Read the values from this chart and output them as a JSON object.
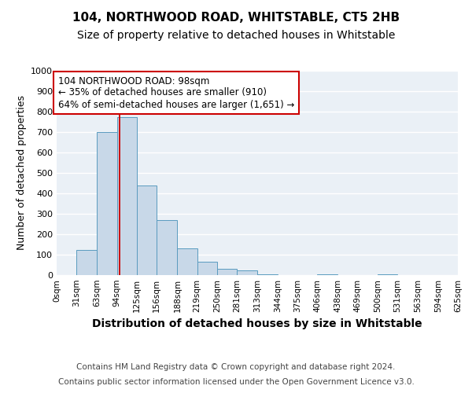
{
  "title1": "104, NORTHWOOD ROAD, WHITSTABLE, CT5 2HB",
  "title2": "Size of property relative to detached houses in Whitstable",
  "xlabel": "Distribution of detached houses by size in Whitstable",
  "ylabel": "Number of detached properties",
  "bin_edges": [
    0,
    31,
    63,
    94,
    125,
    156,
    188,
    219,
    250,
    281,
    313,
    344,
    375,
    406,
    438,
    469,
    500,
    531,
    563,
    594,
    625
  ],
  "bar_heights": [
    0,
    125,
    700,
    775,
    440,
    270,
    130,
    65,
    30,
    25,
    5,
    0,
    0,
    5,
    0,
    0,
    5,
    0,
    0,
    0,
    0
  ],
  "bar_color": "#c8d8e8",
  "bar_edge_color": "#5a9bbf",
  "red_line_x": 98,
  "red_line_color": "#cc0000",
  "annotation_box_color": "#cc0000",
  "annotation_text_line1": "104 NORTHWOOD ROAD: 98sqm",
  "annotation_text_line2": "← 35% of detached houses are smaller (910)",
  "annotation_text_line3": "64% of semi-detached houses are larger (1,651) →",
  "ylim": [
    0,
    1000
  ],
  "xlim": [
    0,
    625
  ],
  "tick_labels": [
    "0sqm",
    "31sqm",
    "63sqm",
    "94sqm",
    "125sqm",
    "156sqm",
    "188sqm",
    "219sqm",
    "250sqm",
    "281sqm",
    "313sqm",
    "344sqm",
    "375sqm",
    "406sqm",
    "438sqm",
    "469sqm",
    "500sqm",
    "531sqm",
    "563sqm",
    "594sqm",
    "625sqm"
  ],
  "footnote_line1": "Contains HM Land Registry data © Crown copyright and database right 2024.",
  "footnote_line2": "Contains public sector information licensed under the Open Government Licence v3.0.",
  "bg_color": "#eaf0f6",
  "grid_color": "#ffffff",
  "title_fontsize": 11,
  "subtitle_fontsize": 10,
  "xlabel_fontsize": 10,
  "ylabel_fontsize": 9,
  "tick_fontsize": 7.5,
  "annotation_fontsize": 8.5,
  "footnote_fontsize": 7.5
}
